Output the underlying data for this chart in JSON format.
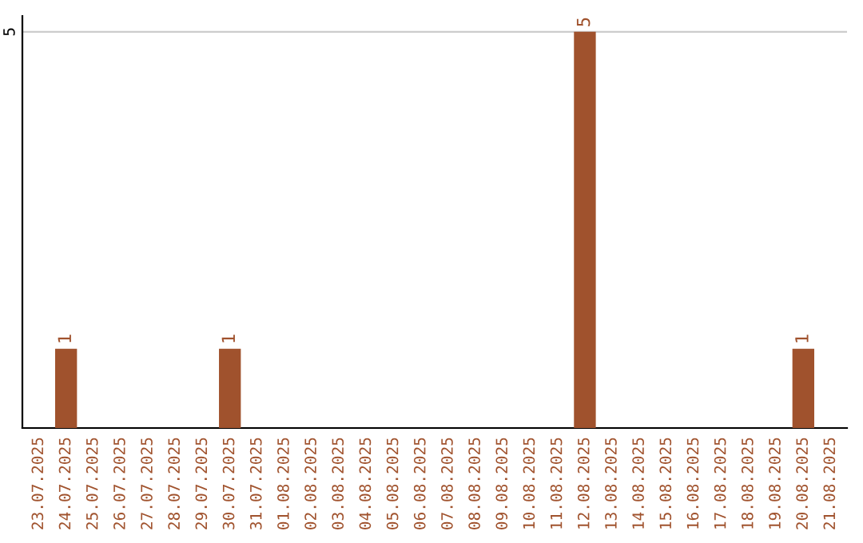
{
  "chart_data": {
    "type": "bar",
    "categories": [
      "23.07.2025",
      "24.07.2025",
      "25.07.2025",
      "26.07.2025",
      "27.07.2025",
      "28.07.2025",
      "29.07.2025",
      "30.07.2025",
      "31.07.2025",
      "01.08.2025",
      "02.08.2025",
      "03.08.2025",
      "04.08.2025",
      "05.08.2025",
      "06.08.2025",
      "07.08.2025",
      "08.08.2025",
      "09.08.2025",
      "10.08.2025",
      "11.08.2025",
      "12.08.2025",
      "13.08.2025",
      "14.08.2025",
      "15.08.2025",
      "16.08.2025",
      "17.08.2025",
      "18.08.2025",
      "19.08.2025",
      "20.08.2025",
      "21.08.2025"
    ],
    "values": [
      0,
      1,
      0,
      0,
      0,
      0,
      0,
      1,
      0,
      0,
      0,
      0,
      0,
      0,
      0,
      0,
      0,
      0,
      0,
      0,
      5,
      0,
      0,
      0,
      0,
      0,
      0,
      0,
      1,
      0
    ],
    "value_labels": [
      null,
      "1",
      null,
      null,
      null,
      null,
      null,
      "1",
      null,
      null,
      null,
      null,
      null,
      null,
      null,
      null,
      null,
      null,
      null,
      null,
      "5",
      null,
      null,
      null,
      null,
      null,
      null,
      null,
      "1",
      null
    ],
    "color": "#a0522d",
    "ylim": [
      0,
      5.2
    ],
    "yticks": [
      5
    ],
    "grid": "y"
  }
}
